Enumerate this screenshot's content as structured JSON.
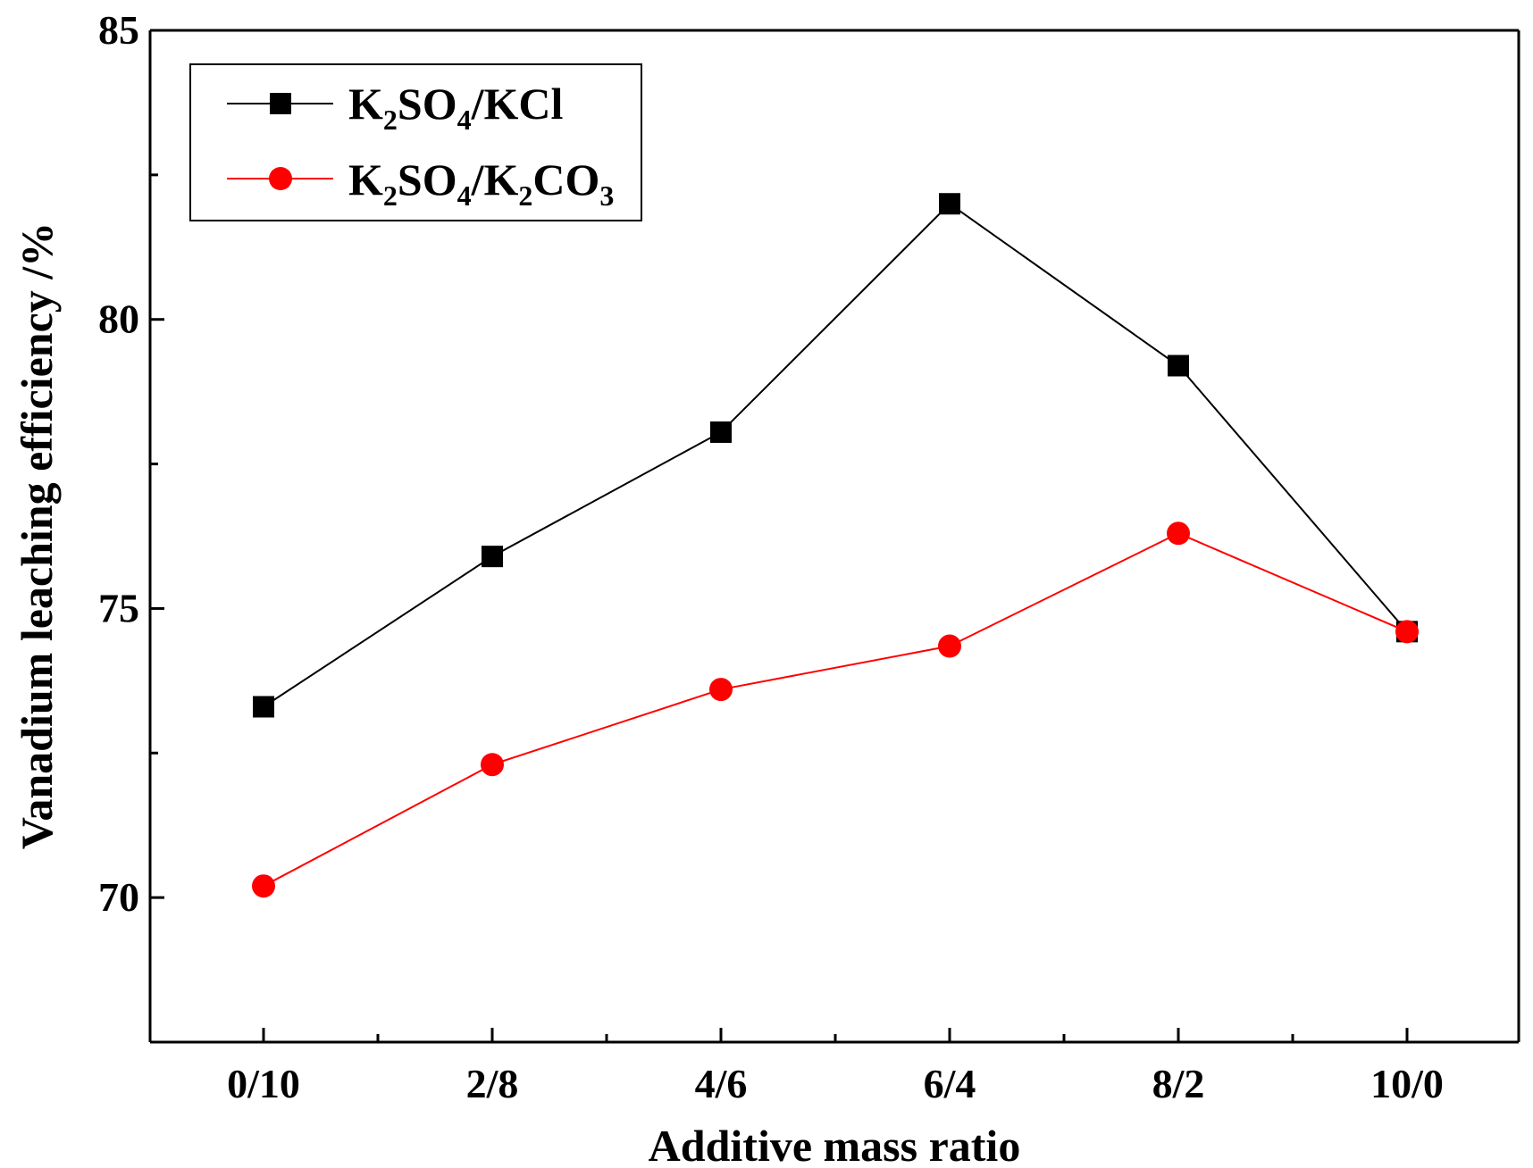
{
  "chart_data": {
    "type": "line",
    "xlabel": "Additive mass ratio",
    "ylabel": "Vanadium leaching efficiency /%",
    "categories": [
      "0/10",
      "2/8",
      "4/6",
      "6/4",
      "8/2",
      "10/0"
    ],
    "ylim": [
      67.5,
      85
    ],
    "yticks": [
      70,
      75,
      80,
      85
    ],
    "yticks_labels": [
      "70",
      "75",
      "80",
      "85"
    ],
    "series": [
      {
        "name": "K2SO4/KCl",
        "legend_parts": [
          "K",
          "2",
          "SO",
          "4",
          "/KCl"
        ],
        "color": "#000000",
        "marker": "square",
        "values": [
          73.3,
          75.9,
          78.05,
          82.0,
          79.2,
          74.6
        ]
      },
      {
        "name": "K2SO4/K2CO3",
        "legend_parts": [
          "K",
          "2",
          "SO",
          "4",
          "/K",
          "2",
          "CO",
          "3"
        ],
        "color": "#ff0000",
        "marker": "circle",
        "values": [
          70.2,
          72.3,
          73.6,
          74.35,
          76.3,
          74.6
        ]
      }
    ],
    "legend_position": "top-left",
    "grid": false
  }
}
